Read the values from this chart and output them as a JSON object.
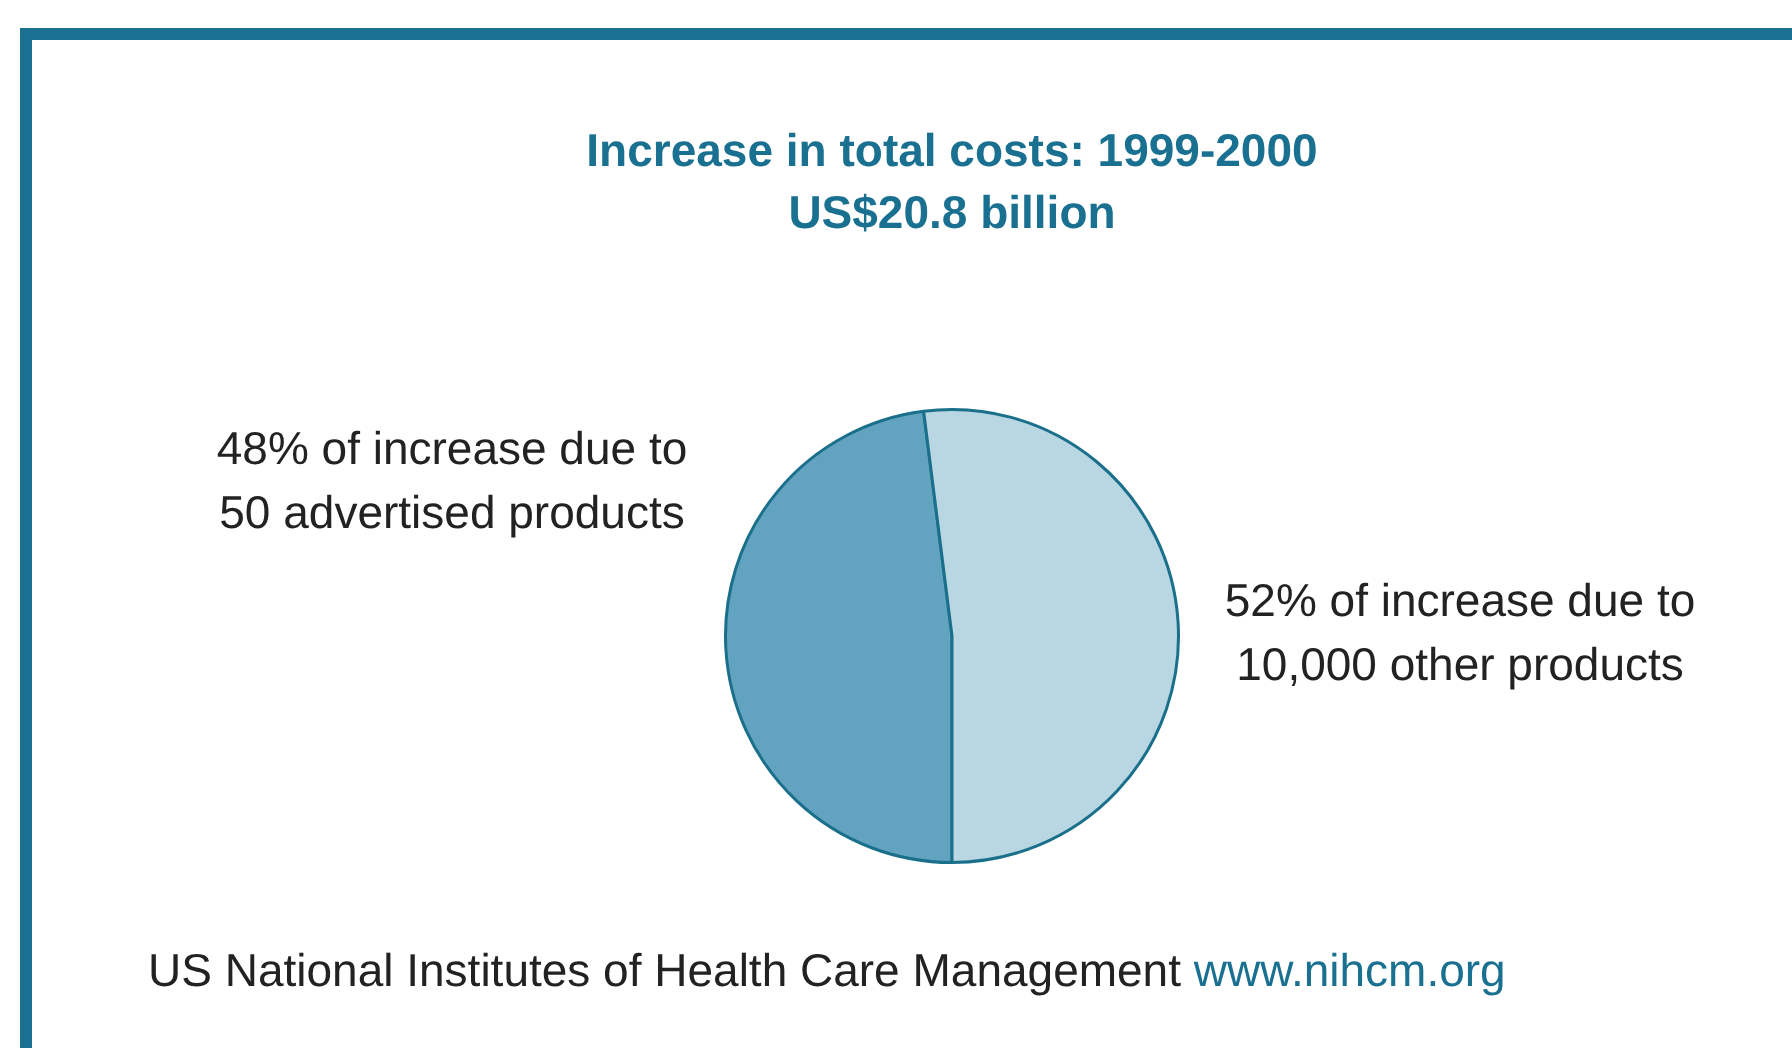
{
  "chart_data": {
    "type": "pie",
    "title": "Increase in total costs: 1999-2000",
    "subtitle": "US$20.8 billion",
    "categories": [
      "48% of increase due to 50 advertised products",
      "52% of increase due to 10,000 other products"
    ],
    "values": [
      48,
      52
    ],
    "colors": [
      "#62a3bf",
      "#b9d6e3"
    ],
    "annotations": [
      "US National Institutes of Health Care Management",
      "www.nihcm.org"
    ],
    "legend": false
  }
}
